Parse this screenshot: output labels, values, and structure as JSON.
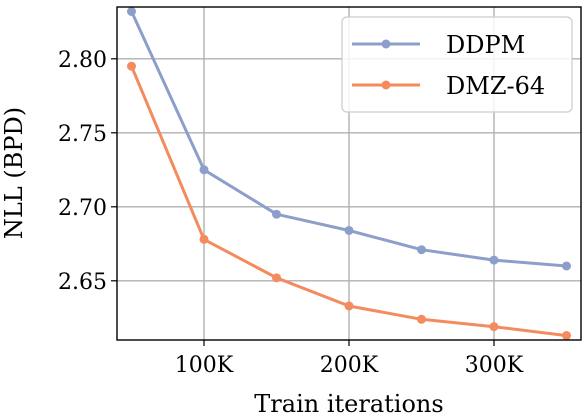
{
  "chart_data": {
    "type": "line",
    "title": "",
    "xlabel": "Train iterations",
    "ylabel": "NLL (BPD)",
    "xlim": [
      40000,
      360000
    ],
    "ylim": [
      2.61,
      2.835
    ],
    "xticks": [
      100000,
      200000,
      300000
    ],
    "xtick_labels": [
      "100K",
      "200K",
      "300K"
    ],
    "yticks": [
      2.65,
      2.7,
      2.75,
      2.8
    ],
    "ytick_labels": [
      "2.65",
      "2.70",
      "2.75",
      "2.80"
    ],
    "grid": true,
    "legend_position": "top-right",
    "series": [
      {
        "name": "DDPM",
        "color": "#8c9fca",
        "x": [
          50000,
          100000,
          150000,
          200000,
          250000,
          300000,
          350000
        ],
        "y": [
          2.832,
          2.725,
          2.695,
          2.684,
          2.671,
          2.664,
          2.66
        ]
      },
      {
        "name": "DMZ-64",
        "color": "#f48b5f",
        "x": [
          50000,
          100000,
          150000,
          200000,
          250000,
          300000,
          350000
        ],
        "y": [
          2.795,
          2.678,
          2.652,
          2.633,
          2.624,
          2.619,
          2.613
        ]
      }
    ]
  }
}
